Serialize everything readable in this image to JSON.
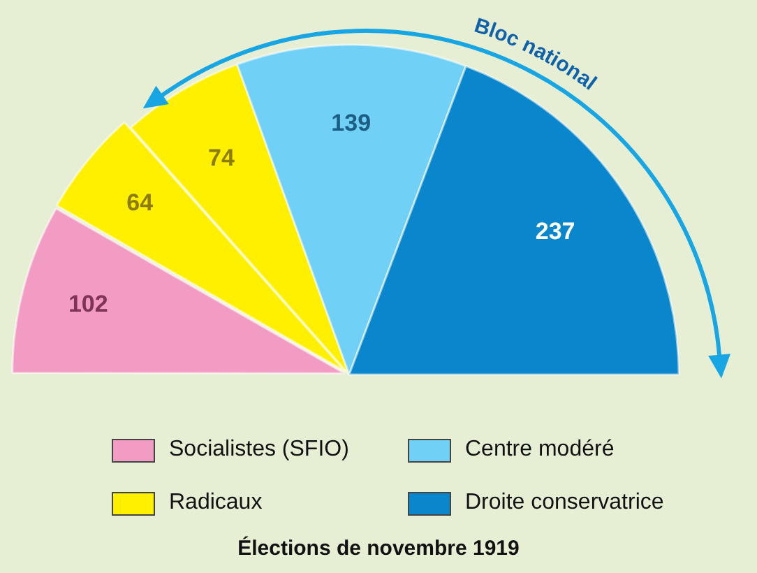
{
  "chart_data": {
    "type": "pie",
    "title": "Élections de novembre 1919",
    "categories": [
      "Socialistes (SFIO)",
      "Radicaux",
      null,
      "Centre modéré",
      "Droite conservatrice"
    ],
    "values": [
      102,
      64,
      74,
      139,
      237
    ],
    "colors": [
      "#f29cc4",
      "#fff000",
      "#fff000",
      "#70d0f6",
      "#0a87cc"
    ],
    "data_labels": true,
    "legend": "bottom",
    "annotations": [
      "Bloc national"
    ]
  }
}
